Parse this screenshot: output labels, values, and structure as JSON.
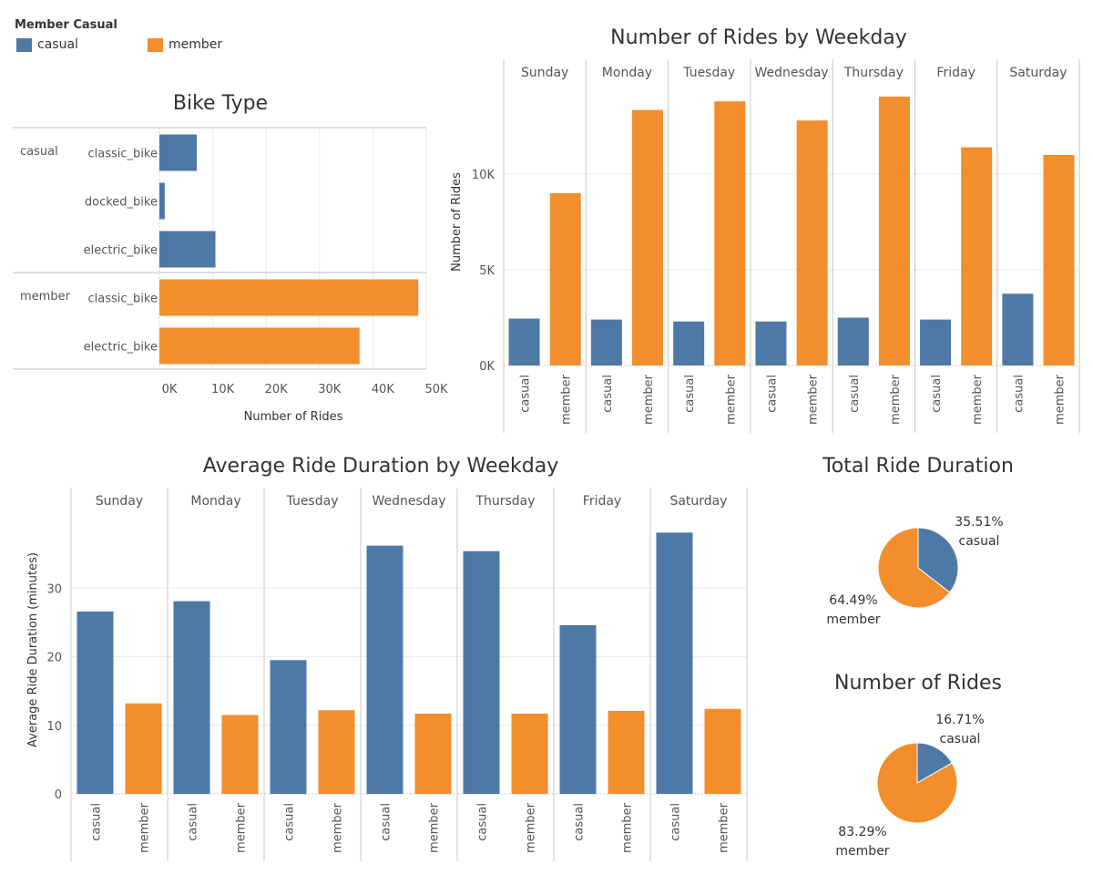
{
  "colors": {
    "casual": "#4e79a7",
    "member": "#f28e2b",
    "grid": "#ececec",
    "divider": "#c8c8c8",
    "text": "#555555",
    "title": "#333333"
  },
  "legend": {
    "title": "Member Casual",
    "items": [
      {
        "label": "casual",
        "color": "#4e79a7"
      },
      {
        "label": "member",
        "color": "#f28e2b"
      }
    ]
  },
  "chart_data": [
    {
      "id": "bike_type",
      "type": "bar",
      "orientation": "horizontal",
      "title": "Bike Type",
      "xlabel": "Number of Rides",
      "xlim": [
        0,
        50000
      ],
      "xticks": [
        {
          "v": 0,
          "label": "0K"
        },
        {
          "v": 10000,
          "label": "10K"
        },
        {
          "v": 20000,
          "label": "20K"
        },
        {
          "v": 30000,
          "label": "30K"
        },
        {
          "v": 40000,
          "label": "40K"
        },
        {
          "v": 50000,
          "label": "50K"
        }
      ],
      "groups": [
        {
          "name": "casual",
          "rows": [
            {
              "label": "classic_bike",
              "value": 7000
            },
            {
              "label": "docked_bike",
              "value": 1000
            },
            {
              "label": "electric_bike",
              "value": 10500
            }
          ]
        },
        {
          "name": "member",
          "rows": [
            {
              "label": "classic_bike",
              "value": 48500
            },
            {
              "label": "electric_bike",
              "value": 37500
            }
          ]
        }
      ]
    },
    {
      "id": "rides_weekday",
      "type": "bar",
      "title": "Number of Rides by Weekday",
      "ylabel": "Number of Rides",
      "ylim": [
        0,
        15000
      ],
      "yticks": [
        {
          "v": 0,
          "label": "0K"
        },
        {
          "v": 5000,
          "label": "5K"
        },
        {
          "v": 10000,
          "label": "10K"
        }
      ],
      "categories": [
        "casual",
        "member"
      ],
      "panels": [
        {
          "label": "Sunday",
          "values": [
            2450,
            9000
          ]
        },
        {
          "label": "Monday",
          "values": [
            2400,
            13350
          ]
        },
        {
          "label": "Tuesday",
          "values": [
            2300,
            13800
          ]
        },
        {
          "label": "Wednesday",
          "values": [
            2300,
            12800
          ]
        },
        {
          "label": "Thursday",
          "values": [
            2500,
            14050
          ]
        },
        {
          "label": "Friday",
          "values": [
            2400,
            11400
          ]
        },
        {
          "label": "Saturday",
          "values": [
            3750,
            11000
          ]
        }
      ]
    },
    {
      "id": "avg_duration_weekday",
      "type": "bar",
      "title": "Average Ride Duration by Weekday",
      "ylabel": "Average Ride Duration (minutes)",
      "ylim": [
        0,
        42
      ],
      "yticks": [
        {
          "v": 0,
          "label": "0"
        },
        {
          "v": 10,
          "label": "10"
        },
        {
          "v": 20,
          "label": "20"
        },
        {
          "v": 30,
          "label": "30"
        }
      ],
      "categories": [
        "casual",
        "member"
      ],
      "panels": [
        {
          "label": "Sunday",
          "values": [
            26.6,
            13.2
          ]
        },
        {
          "label": "Monday",
          "values": [
            28.1,
            11.5
          ]
        },
        {
          "label": "Tuesday",
          "values": [
            19.5,
            12.2
          ]
        },
        {
          "label": "Wednesday",
          "values": [
            36.2,
            11.7
          ]
        },
        {
          "label": "Thursday",
          "values": [
            35.4,
            11.7
          ]
        },
        {
          "label": "Friday",
          "values": [
            24.6,
            12.1
          ]
        },
        {
          "label": "Saturday",
          "values": [
            38.1,
            12.4
          ]
        }
      ]
    },
    {
      "id": "total_duration",
      "type": "pie",
      "title": "Total Ride Duration",
      "slices": [
        {
          "name": "casual",
          "percent": 35.51,
          "pct_label": "35.51%"
        },
        {
          "name": "member",
          "percent": 64.49,
          "pct_label": "64.49%"
        }
      ]
    },
    {
      "id": "rides_share",
      "type": "pie",
      "title": "Number of Rides",
      "slices": [
        {
          "name": "casual",
          "percent": 16.71,
          "pct_label": "16.71%"
        },
        {
          "name": "member",
          "percent": 83.29,
          "pct_label": "83.29%"
        }
      ]
    }
  ]
}
